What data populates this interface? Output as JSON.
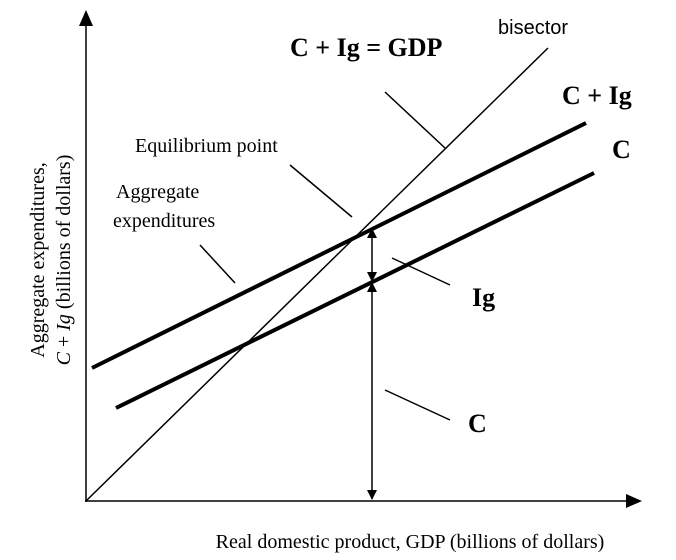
{
  "diagram": {
    "labels": {
      "bisector": "bisector",
      "identity": "C + Ig = GDP",
      "aggregate_line": "C + Ig",
      "consumption_line": "C",
      "equilibrium": "Equilibrium point",
      "aggregate_1": "Aggregate",
      "aggregate_2": "expenditures",
      "investment_gap": "Ig",
      "consumption_gap": "C"
    },
    "y_axis_label": {
      "line1": "Aggregate expenditures,",
      "line2_c": "C",
      "line2_plus": " + ",
      "line2_ig": "Ig",
      "line2_rest": " (billions of dollars)"
    },
    "x_axis_label": "Real domestic product, GDP (billions of dollars)"
  }
}
